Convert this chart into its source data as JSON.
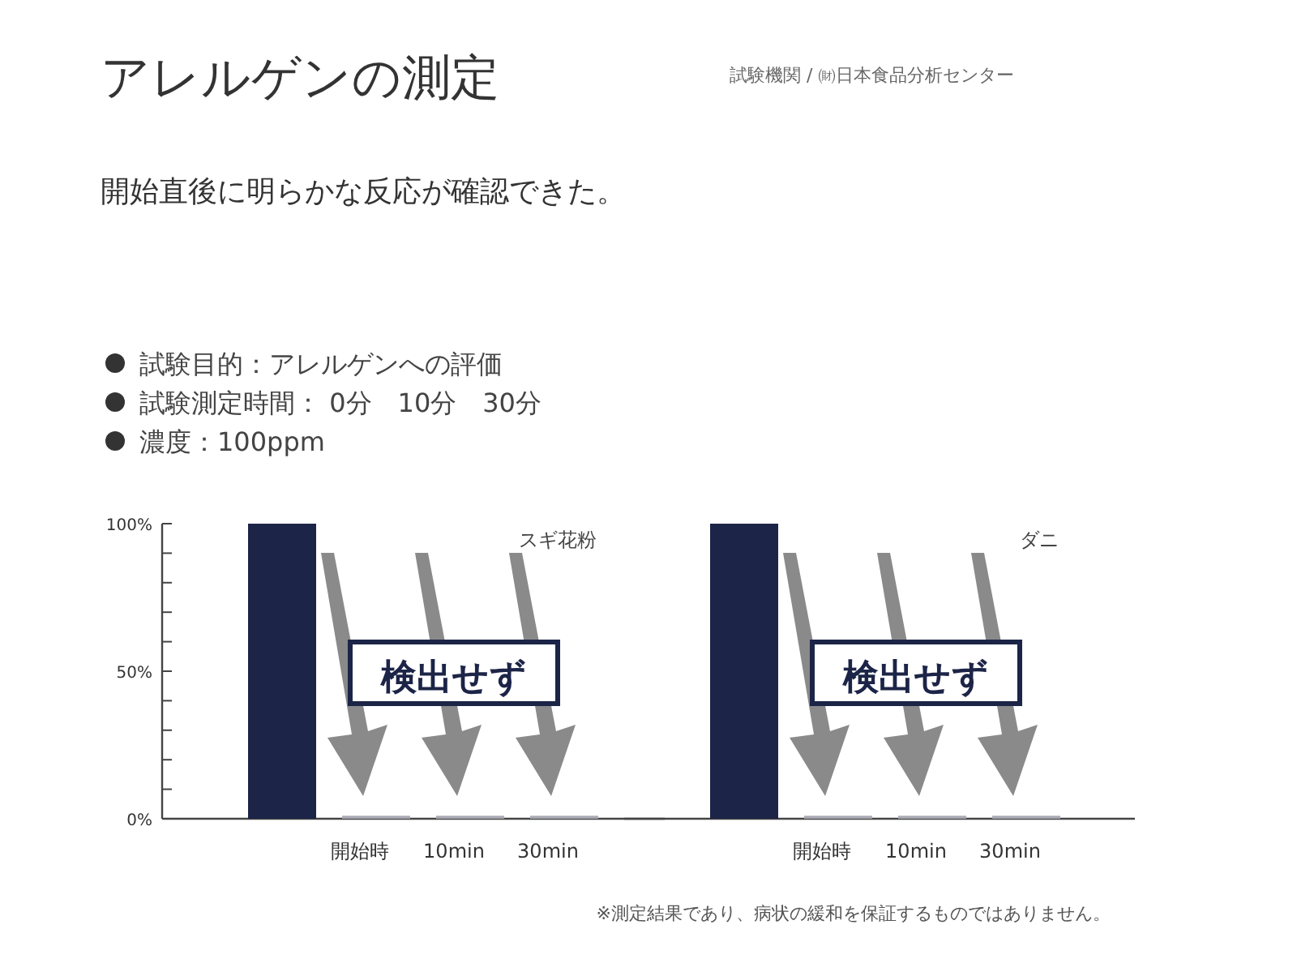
{
  "chart_data": [
    {
      "type": "bar",
      "title": "アレルゲンの測定",
      "subtitle": "開始直後に明らかな反応が確認できた。",
      "annotations": [
        "試験機関 / ㈶日本食品分析センター",
        "試験目的：アレルゲンへの評価",
        "試験測定時間： 0分　10分　30分",
        "濃度：100ppm",
        "※測定結果であり、病状の緩和を保証するものではありません。",
        "検出せず"
      ],
      "categories": [
        null,
        "開始時",
        "10min",
        "30min"
      ],
      "series": [
        {
          "name": "スギ花粉",
          "colors": [
            "#1c2447",
            "#a8a8b4",
            "#a8a8b4",
            "#a8a8b4"
          ],
          "values": [
            100,
            1,
            1,
            1
          ]
        }
      ],
      "ylim": [
        0,
        100
      ],
      "yticks": [
        {
          "value": 0,
          "label": "0%"
        },
        {
          "value": 10,
          "label": null
        },
        {
          "value": 20,
          "label": null
        },
        {
          "value": 30,
          "label": null
        },
        {
          "value": 40,
          "label": null
        },
        {
          "value": 50,
          "label": "50%"
        },
        {
          "value": 60,
          "label": null
        },
        {
          "value": 70,
          "label": null
        },
        {
          "value": 80,
          "label": null
        },
        {
          "value": 90,
          "label": null
        },
        {
          "value": 100,
          "label": "100%"
        }
      ]
    },
    {
      "type": "bar",
      "annotations": [
        "検出せず"
      ],
      "categories": [
        null,
        "開始時",
        "10min",
        "30min"
      ],
      "series": [
        {
          "name": "ダニ",
          "colors": [
            "#1c2447",
            "#a8a8b4",
            "#a8a8b4",
            "#a8a8b4"
          ],
          "values": [
            100,
            1,
            1,
            1
          ]
        }
      ],
      "ylim": [
        0,
        100
      ],
      "tick_labels": "x"
    }
  ]
}
